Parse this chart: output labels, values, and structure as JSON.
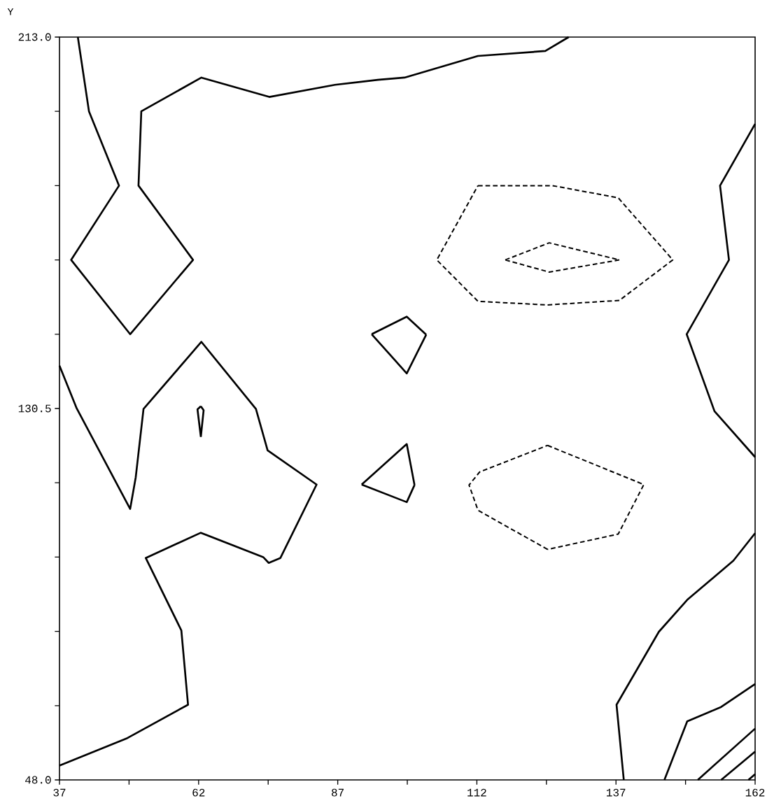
{
  "chart_data": {
    "type": "line",
    "ylabel": "Y",
    "xlim": [
      37,
      162
    ],
    "ylim": [
      48,
      213
    ],
    "xticks": [
      37,
      {
        "value": 49.5,
        "label": null
      },
      62,
      {
        "value": 74.5,
        "label": null
      },
      87,
      {
        "value": 99.5,
        "label": null
      },
      112,
      {
        "value": 124.5,
        "label": null
      },
      137,
      {
        "value": 149.5,
        "label": null
      },
      162
    ],
    "yticks": [
      {
        "value": 48,
        "label": "48.0"
      },
      {
        "value": 64.5,
        "label": null
      },
      {
        "value": 81,
        "label": null
      },
      {
        "value": 97.5,
        "label": null
      },
      {
        "value": 114,
        "label": null
      },
      {
        "value": 130.5,
        "label": "130.5"
      },
      {
        "value": 147,
        "label": null
      },
      {
        "value": 163.5,
        "label": null
      },
      {
        "value": 180,
        "label": null
      },
      {
        "value": 196.5,
        "label": null
      },
      {
        "value": 213,
        "label": "213.0"
      }
    ],
    "marker": "none",
    "series": [
      {
        "color": "#000000",
        "line_style": "solid",
        "x": [
          40.3,
          42.3,
          47.7,
          39.1,
          49.7,
          61,
          51.2,
          51.7,
          62.5,
          74.7,
          86.5,
          94.2,
          99,
          112.2,
          124.3,
          128.5
        ],
        "values": [
          213,
          196.5,
          180,
          163.5,
          147,
          163.5,
          180,
          196.5,
          204,
          199.7,
          202.4,
          203.5,
          204,
          208.8,
          209.9,
          213
        ]
      },
      {
        "color": "#000000",
        "line_style": "dashed",
        "x": [
          112.2,
          125.6,
          137.4,
          147.2,
          137.6,
          null,
          137.6,
          124.7,
          112.2,
          104.8,
          112.2
        ],
        "values": [
          180,
          180,
          177.3,
          163.5,
          154.5,
          null,
          154.5,
          153.5,
          154.3,
          163.5,
          180
        ]
      },
      {
        "color": "#000000",
        "line_style": "dashed",
        "x": [
          117.1,
          125,
          137.6,
          null,
          137.6,
          125,
          117.1
        ],
        "values": [
          163.5,
          167.3,
          163.5,
          null,
          163.5,
          160.8,
          163.5
        ]
      },
      {
        "color": "#000000",
        "line_style": "solid",
        "x": [
          93.1,
          99.4,
          102.9,
          null,
          102.9,
          99.4,
          93.1
        ],
        "values": [
          147,
          150.9,
          146.9,
          null,
          146.9,
          138.3,
          147
        ]
      },
      {
        "color": "#000000",
        "line_style": "solid",
        "x": [
          162,
          155.7,
          157.3,
          149.7,
          154.7,
          162
        ],
        "values": [
          193.7,
          180,
          163.5,
          147,
          129.9,
          119.7
        ]
      },
      {
        "color": "#000000",
        "line_style": "solid",
        "x": [
          37,
          40.1,
          49.7,
          50.7,
          52.1,
          62.5,
          72.3,
          74.4,
          83.2,
          76.7,
          74.6,
          73.6,
          62.4,
          52.5,
          58.9,
          60.1,
          49.2,
          37
        ],
        "values": [
          140,
          130.5,
          108.2,
          115.2,
          130.4,
          145.3,
          130.4,
          121.2,
          113.6,
          97.3,
          96.2,
          97.5,
          102.9,
          97.3,
          81.2,
          64.7,
          57.3,
          51.2
        ]
      },
      {
        "color": "#000000",
        "line_style": "solid",
        "x": [
          62.4,
          62.9,
          62.4,
          null,
          62.4,
          61.8,
          62.4
        ],
        "values": [
          131,
          130.1,
          124.2,
          null,
          124.2,
          130.3,
          131
        ]
      },
      {
        "color": "#000000",
        "line_style": "solid",
        "x": [
          91.3,
          99.4,
          100.8,
          null,
          100.8,
          99.4,
          91.3
        ],
        "values": [
          113.6,
          122.6,
          113.5,
          null,
          113.5,
          109.7,
          113.6
        ]
      },
      {
        "color": "#000000",
        "line_style": "dashed",
        "x": [
          124.7,
          142,
          137.4,
          124.7,
          null,
          124.7,
          112.2,
          110.6,
          112.5,
          124.7
        ],
        "values": [
          122.3,
          113.6,
          102.6,
          99.2,
          null,
          99.2,
          107.9,
          113.5,
          116.4,
          122.3
        ]
      },
      {
        "color": "#000000",
        "line_style": "solid",
        "x": [
          138.4,
          137.1,
          144.7,
          149.8,
          158.1,
          162
        ],
        "values": [
          48,
          64.7,
          80.9,
          88,
          96.7,
          102.8
        ]
      },
      {
        "color": "#000000",
        "line_style": "solid",
        "x": [
          145.7,
          149.8,
          155.9,
          162
        ],
        "values": [
          48,
          61,
          64.2,
          69.3
        ]
      },
      {
        "color": "#000000",
        "line_style": "solid",
        "x": [
          151.7,
          162
        ],
        "values": [
          48,
          59.4
        ]
      },
      {
        "color": "#000000",
        "line_style": "solid",
        "x": [
          155.9,
          162
        ],
        "values": [
          48,
          54.3
        ]
      },
      {
        "color": "#000000",
        "line_style": "solid",
        "x": [
          160.8,
          162
        ],
        "values": [
          48,
          49.3
        ]
      }
    ]
  }
}
